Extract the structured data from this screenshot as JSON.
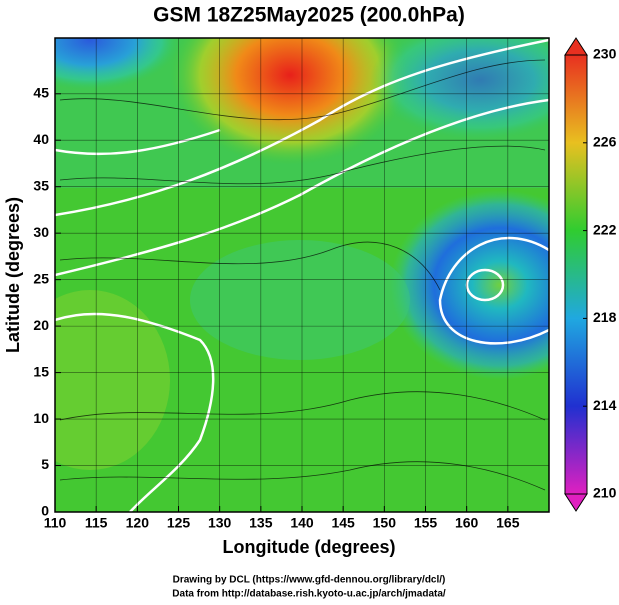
{
  "chart_data": {
    "type": "map",
    "title": "GSM 18Z25May2025 (200.0hPa)",
    "x_label": "Longitude (degrees)",
    "y_label": "Latitude  (degrees)",
    "xlim": [
      110,
      170
    ],
    "xticks": [
      110,
      115,
      120,
      125,
      130,
      135,
      140,
      145,
      150,
      155,
      160,
      165
    ],
    "ylim": [
      0,
      51
    ],
    "yticks": [
      0,
      5,
      10,
      15,
      20,
      25,
      30,
      35,
      40,
      45
    ],
    "grid": true,
    "colorbar": {
      "lim": [
        210,
        230
      ],
      "ticks": [
        210,
        214,
        218,
        222,
        226,
        230
      ]
    },
    "footer": [
      "Drawing by DCL (https://www.gfd-dennou.org/library/dcl/)",
      "Data from http://database.rish.kyoto-u.ac.jp/arch/jmadata/"
    ]
  }
}
